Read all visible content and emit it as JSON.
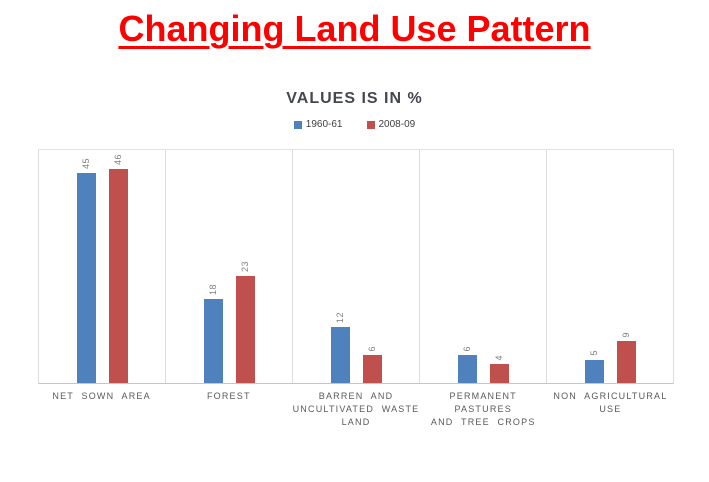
{
  "page": {
    "title": "Changing Land Use Pattern",
    "title_color": "#ff0000"
  },
  "chart_data": {
    "type": "bar",
    "title": "VALUES IS IN %",
    "categories": [
      "NET SOWN AREA",
      "FOREST",
      "BARREN AND\nUNCULTIVATED WASTE\nLAND",
      "PERMANENT PASTURES\nAND TREE CROPS",
      "NON AGRICULTURAL\nUSE"
    ],
    "series": [
      {
        "name": "1960-61",
        "color": "#4F81BD",
        "values": [
          45,
          18,
          12,
          6,
          5
        ]
      },
      {
        "name": "2008-09",
        "color": "#C0504D",
        "values": [
          46,
          23,
          6,
          4,
          9
        ]
      }
    ],
    "ylim": [
      0,
      50
    ],
    "xlabel": "",
    "ylabel": "",
    "grid": "off",
    "legend_position": "top",
    "data_labels": "rotated-vertical"
  }
}
